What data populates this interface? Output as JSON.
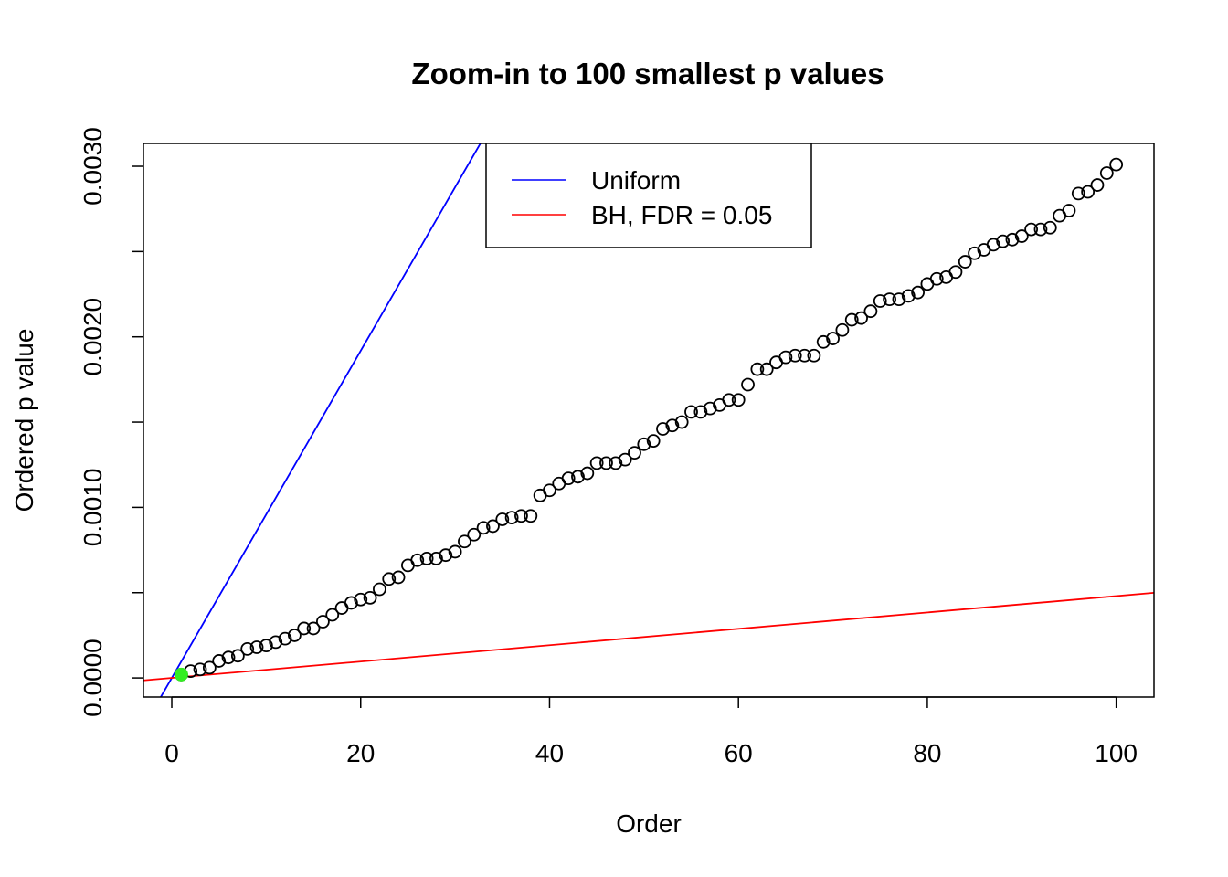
{
  "chart_data": {
    "type": "scatter",
    "title": "Zoom-in to 100 smallest p values",
    "xlabel": "Order",
    "ylabel": "Ordered p value",
    "xlim": [
      -3,
      104
    ],
    "ylim": [
      -0.000112,
      0.003134
    ],
    "x_ticks": [
      0,
      20,
      40,
      60,
      80,
      100
    ],
    "x_tick_labels": [
      "0",
      "20",
      "40",
      "60",
      "80",
      "100"
    ],
    "y_ticks": [
      0,
      0.0005,
      0.001,
      0.0015,
      0.002,
      0.0025,
      0.003
    ],
    "y_tick_labels": [
      "0.0000",
      "",
      "0.0010",
      "",
      "0.0020",
      "",
      "0.0030"
    ],
    "grid": false,
    "legend": {
      "placement": "top",
      "entries": [
        {
          "label": "Uniform",
          "color": "#0000ff"
        },
        {
          "label": "BH, FDR = 0.05",
          "color": "#ff0000"
        }
      ]
    },
    "lines": [
      {
        "name": "Uniform",
        "color": "#0000ff",
        "intercept": 0,
        "slope": 9.59e-05
      },
      {
        "name": "BH, FDR = 0.05",
        "color": "#ff0000",
        "intercept": 0,
        "slope": 4.8e-06
      }
    ],
    "highlight": {
      "x": 1,
      "color": "#33ee22"
    },
    "points_color": "#000000",
    "x": [
      1,
      2,
      3,
      4,
      5,
      6,
      7,
      8,
      9,
      10,
      11,
      12,
      13,
      14,
      15,
      16,
      17,
      18,
      19,
      20,
      21,
      22,
      23,
      24,
      25,
      26,
      27,
      28,
      29,
      30,
      31,
      32,
      33,
      34,
      35,
      36,
      37,
      38,
      39,
      40,
      41,
      42,
      43,
      44,
      45,
      46,
      47,
      48,
      49,
      50,
      51,
      52,
      53,
      54,
      55,
      56,
      57,
      58,
      59,
      60,
      61,
      62,
      63,
      64,
      65,
      66,
      67,
      68,
      69,
      70,
      71,
      72,
      73,
      74,
      75,
      76,
      77,
      78,
      79,
      80,
      81,
      82,
      83,
      84,
      85,
      86,
      87,
      88,
      89,
      90,
      91,
      92,
      93,
      94,
      95,
      96,
      97,
      98,
      99,
      100
    ],
    "y": [
      2e-05,
      4e-05,
      5e-05,
      6e-05,
      0.0001,
      0.00012,
      0.00013,
      0.00017,
      0.00018,
      0.00019,
      0.00021,
      0.00023,
      0.00025,
      0.00029,
      0.00029,
      0.00033,
      0.00037,
      0.00041,
      0.00044,
      0.00046,
      0.00047,
      0.00052,
      0.00058,
      0.00059,
      0.00066,
      0.00069,
      0.0007,
      0.0007,
      0.00072,
      0.00074,
      0.0008,
      0.00084,
      0.00088,
      0.00089,
      0.00093,
      0.00094,
      0.00095,
      0.00095,
      0.00107,
      0.0011,
      0.00114,
      0.00117,
      0.00118,
      0.0012,
      0.00126,
      0.00126,
      0.00126,
      0.00128,
      0.00132,
      0.00137,
      0.00139,
      0.00146,
      0.00148,
      0.0015,
      0.00156,
      0.00156,
      0.00158,
      0.0016,
      0.00163,
      0.00163,
      0.00172,
      0.00181,
      0.00181,
      0.00185,
      0.00188,
      0.00189,
      0.00189,
      0.00189,
      0.00197,
      0.00199,
      0.00204,
      0.0021,
      0.00211,
      0.00215,
      0.00221,
      0.00222,
      0.00222,
      0.00224,
      0.00226,
      0.00231,
      0.00234,
      0.00235,
      0.00238,
      0.00244,
      0.00249,
      0.00251,
      0.00254,
      0.00256,
      0.00257,
      0.00259,
      0.00263,
      0.00263,
      0.00264,
      0.00271,
      0.00274,
      0.00284,
      0.00285,
      0.00289,
      0.00296,
      0.00301
    ]
  }
}
